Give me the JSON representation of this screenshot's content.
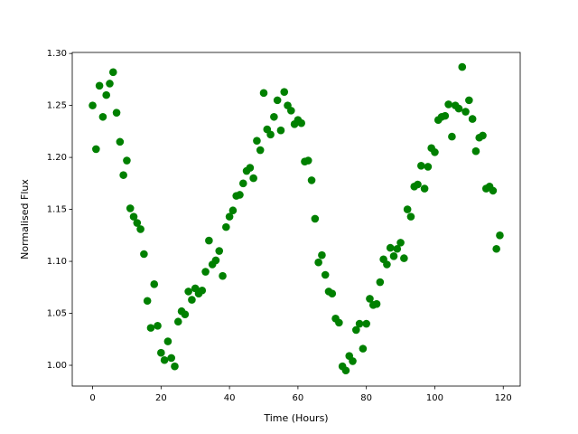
{
  "chart_data": {
    "type": "scatter",
    "xlabel": "Time (Hours)",
    "ylabel": "Normalised Flux",
    "color": "#008000",
    "xlim": [
      -5.95,
      124.95
    ],
    "ylim": [
      0.98,
      1.301
    ],
    "xticks": [
      0,
      20,
      40,
      60,
      80,
      100,
      120
    ],
    "yticks": [
      {
        "value": 1.0,
        "label": "1.00"
      },
      1.05,
      {
        "value": 1.1,
        "label": "1.10"
      },
      1.15,
      {
        "value": 1.2,
        "label": "1.20"
      },
      1.25,
      {
        "value": 1.3,
        "label": "1.30"
      }
    ],
    "x": [
      0,
      1,
      2,
      3,
      4,
      5,
      6,
      7,
      8,
      9,
      10,
      11,
      12,
      13,
      14,
      15,
      16,
      17,
      18,
      19,
      20,
      21,
      22,
      23,
      24,
      25,
      26,
      27,
      28,
      29,
      30,
      31,
      32,
      33,
      34,
      35,
      36,
      37,
      38,
      39,
      40,
      41,
      42,
      43,
      44,
      45,
      46,
      47,
      48,
      49,
      50,
      51,
      52,
      53,
      54,
      55,
      56,
      57,
      58,
      59,
      60,
      61,
      62,
      63,
      64,
      65,
      66,
      67,
      68,
      69,
      70,
      71,
      72,
      73,
      74,
      75,
      76,
      77,
      78,
      79,
      80,
      81,
      82,
      83,
      84,
      85,
      86,
      87,
      88,
      89,
      90,
      91,
      92,
      93,
      94,
      95,
      96,
      97,
      98,
      99,
      100,
      101,
      102,
      103,
      104,
      105,
      106,
      107,
      108,
      109,
      110,
      111,
      112,
      113,
      114,
      115,
      116,
      117,
      118,
      119
    ],
    "values": [
      1.25,
      1.208,
      1.269,
      1.239,
      1.26,
      1.271,
      1.282,
      1.243,
      1.215,
      1.183,
      1.197,
      1.151,
      1.143,
      1.137,
      1.131,
      1.107,
      1.062,
      1.036,
      1.078,
      1.038,
      1.012,
      1.005,
      1.023,
      1.007,
      0.999,
      1.042,
      1.052,
      1.049,
      1.071,
      1.063,
      1.074,
      1.069,
      1.072,
      1.09,
      1.12,
      1.097,
      1.101,
      1.11,
      1.086,
      1.133,
      1.143,
      1.149,
      1.163,
      1.164,
      1.175,
      1.187,
      1.19,
      1.18,
      1.216,
      1.207,
      1.262,
      1.227,
      1.222,
      1.239,
      1.255,
      1.226,
      1.263,
      1.25,
      1.245,
      1.232,
      1.236,
      1.233,
      1.196,
      1.197,
      1.178,
      1.141,
      1.099,
      1.106,
      1.087,
      1.071,
      1.069,
      1.045,
      1.041,
      0.999,
      0.995,
      1.009,
      1.004,
      1.034,
      1.04,
      1.016,
      1.04,
      1.064,
      1.058,
      1.059,
      1.08,
      1.102,
      1.097,
      1.113,
      1.105,
      1.112,
      1.118,
      1.103,
      1.15,
      1.143,
      1.172,
      1.174,
      1.192,
      1.17,
      1.191,
      1.209,
      1.205,
      1.236,
      1.239,
      1.24,
      1.251,
      1.22,
      1.25,
      1.247,
      1.287,
      1.244,
      1.255,
      1.237,
      1.206,
      1.219,
      1.221,
      1.17,
      1.172,
      1.168,
      1.112,
      1.125
    ]
  }
}
